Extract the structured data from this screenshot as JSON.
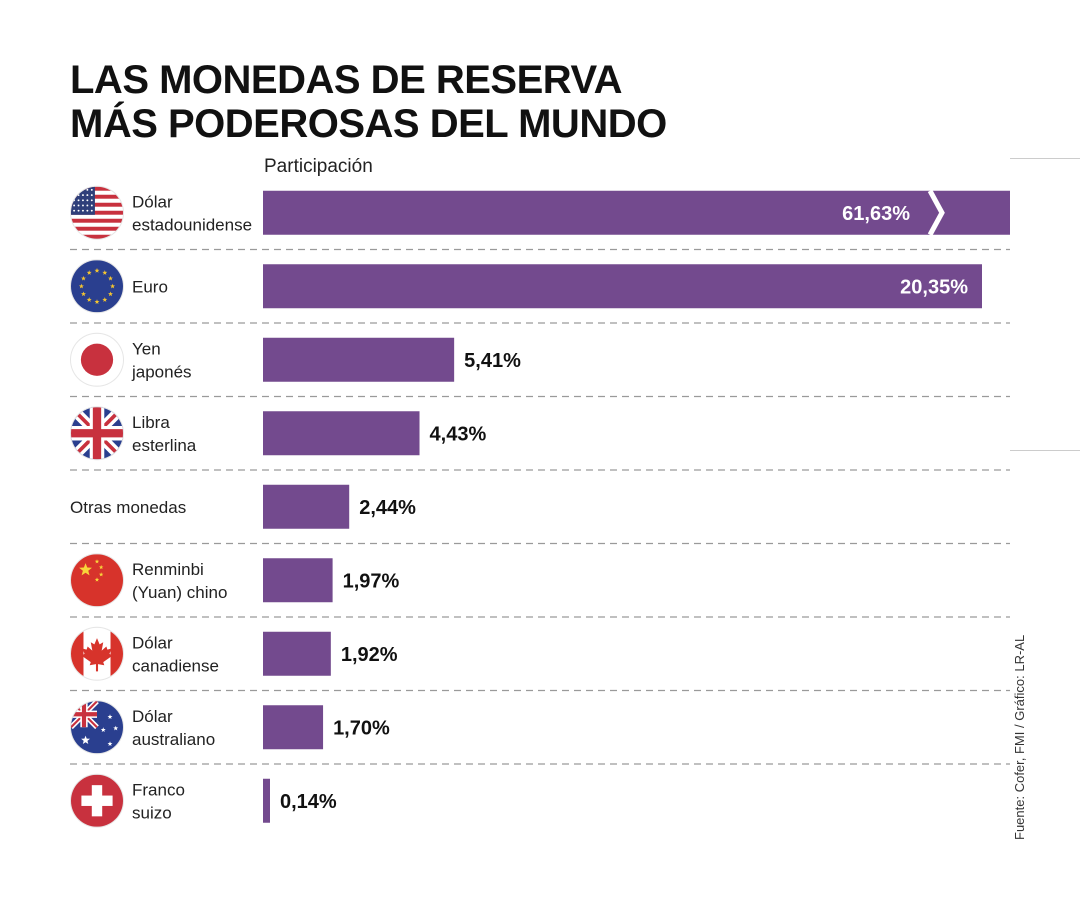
{
  "title_lines": [
    "LAS MONEDAS DE RESERVA",
    "MÁS PODEROSAS DEL MUNDO"
  ],
  "source": "Fuente: Cofer, FMI / Gráfico: LR-AL",
  "bar_color": "#734a8e",
  "chart_data": {
    "type": "bar",
    "orientation": "horizontal",
    "title": "LAS MONEDAS DE RESERVA MÁS PODEROSAS DEL MUNDO",
    "value_label": "Participación",
    "unit": "%",
    "categories": [
      [
        "Dólar",
        "estadounidense"
      ],
      [
        "Euro"
      ],
      [
        "Yen",
        "japonés"
      ],
      [
        "Libra",
        "esterlina"
      ],
      [
        "Otras monedas"
      ],
      [
        "Renminbi",
        "(Yuan) chino"
      ],
      [
        "Dólar",
        "canadiense"
      ],
      [
        "Dólar",
        "australiano"
      ],
      [
        "Franco",
        "suizo"
      ]
    ],
    "values": [
      61.63,
      20.35,
      5.41,
      4.43,
      2.44,
      1.97,
      1.92,
      1.7,
      0.14
    ],
    "labels": [
      "61,63%",
      "20,35%",
      "5,41%",
      "4,43%",
      "2,44%",
      "1,97%",
      "1,92%",
      "1,70%",
      "0,14%"
    ],
    "flags": [
      "usa-flag-icon",
      "eu-flag-icon",
      "japan-flag-icon",
      "uk-flag-icon",
      "",
      "china-flag-icon",
      "canada-flag-icon",
      "australia-flag-icon",
      "switzerland-flag-icon"
    ],
    "axis_break_on_first_bar": true
  }
}
